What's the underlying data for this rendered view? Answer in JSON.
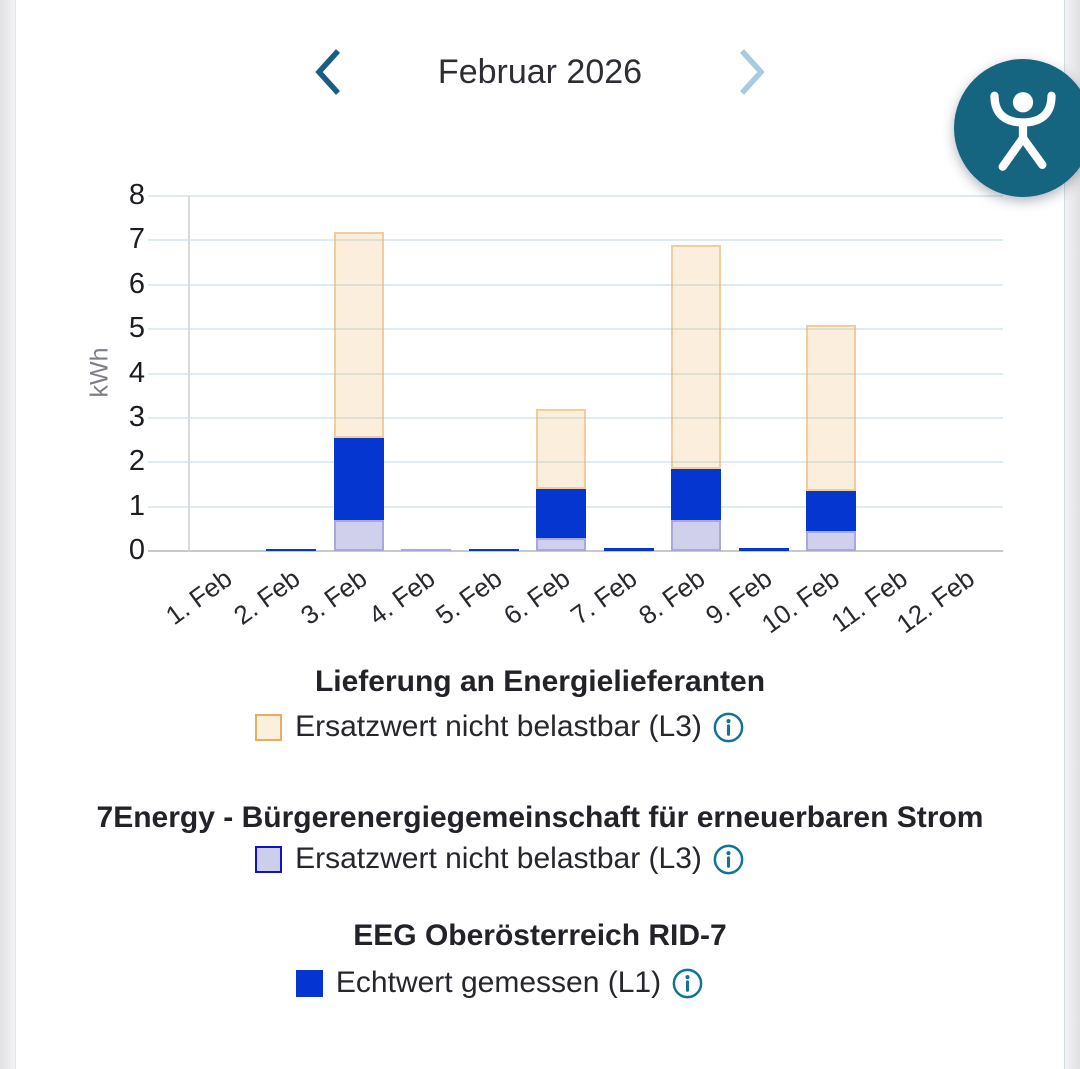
{
  "header": {
    "title": "Februar 2026"
  },
  "accessibility_button": {
    "icon": "person-arms-raised"
  },
  "chart_data": {
    "type": "bar",
    "stacked": true,
    "title": "",
    "xlabel": "",
    "ylabel": "kWh",
    "ylim": [
      0,
      8
    ],
    "yticks": [
      0,
      1,
      2,
      3,
      4,
      5,
      6,
      7,
      8
    ],
    "grid": true,
    "legend_position": "bottom",
    "categories": [
      "1. Feb",
      "2. Feb",
      "3. Feb",
      "4. Feb",
      "5. Feb",
      "6. Feb",
      "7. Feb",
      "8. Feb",
      "9. Feb",
      "10. Feb",
      "11. Feb",
      "12. Feb"
    ],
    "series": [
      {
        "name": "7Energy - Bürgerenergiegemeinschaft für erneuerbaren Strom – Ersatzwert nicht belastbar (L3)",
        "fill": "#D0D0EC",
        "border": "#A9A8DA",
        "values": [
          0,
          0,
          0.7,
          0.02,
          0,
          0.3,
          0,
          0.7,
          0,
          0.45,
          0,
          0
        ]
      },
      {
        "name": "EEG Oberösterreich RID-7 – Echtwert gemessen (L1)",
        "fill": "#0537D0",
        "border": "#0537D0",
        "values": [
          0,
          0.04,
          1.85,
          0,
          0.05,
          1.1,
          0.06,
          1.15,
          0.06,
          0.9,
          0,
          0
        ]
      },
      {
        "name": "Lieferung an Energielieferanten – Ersatzwert nicht belastbar (L3)",
        "fill": "rgba(236,177,94,0.22)",
        "border": "rgba(232,172,92,0.5)",
        "values": [
          0,
          0,
          4.65,
          0,
          0,
          1.8,
          0,
          5.05,
          0,
          3.75,
          0,
          0
        ]
      }
    ],
    "totals": [
      0,
      0.04,
      7.2,
      0.02,
      0.05,
      3.2,
      0.06,
      6.9,
      0.06,
      5.1,
      0,
      0
    ]
  },
  "legend": {
    "sections": [
      {
        "title": "Lieferung an Energielieferanten",
        "entries": [
          {
            "label": "Ersatzwert nicht belastbar (L3)",
            "swatch_fill": "#FBEFDE",
            "swatch_border": "#E9AD5E",
            "has_info": true
          }
        ]
      },
      {
        "title": "7Energy - Bürgerenergiegemeinschaft für erneuerbaren Strom",
        "entries": [
          {
            "label": "Ersatzwert nicht belastbar (L3)",
            "swatch_fill": "#CDCDEC",
            "swatch_border": "#1111C6",
            "has_info": true
          }
        ]
      },
      {
        "title": "EEG Oberösterreich RID-7",
        "entries": [
          {
            "label": "Echtwert gemessen (L1)",
            "swatch_fill": "#0435D2",
            "swatch_border": "#0435D2",
            "has_info": true
          }
        ]
      }
    ]
  },
  "colors": {
    "chevron_prev": "#1A5E82",
    "chevron_next": "#A9CBDF",
    "accessibility_bg": "#156480",
    "info_icon": "#0F7495",
    "grid_line": "#DFEAF1",
    "baseline": "#C6C9CC",
    "axis_line": "#D8DBDE",
    "tick_text": "#1C1C22",
    "y_axis_title_text": "#7E7E87"
  }
}
